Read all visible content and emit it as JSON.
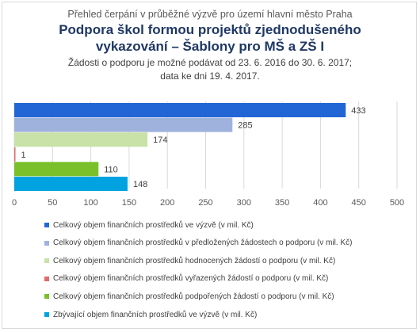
{
  "header": {
    "supertitle": "Přehled čerpání v průběžné výzvě pro území hlavní město Praha",
    "title_line1": "Podpora škol formou projektů zjednodušeného",
    "title_line2": "vykazování – Šablony pro MŠ a ZŠ I",
    "subtitle_line1": "Žádosti o podporu je možné podávat od 23. 6. 2016 do 30. 6. 2017;",
    "subtitle_line2": "data ke dni 19. 4. 2017."
  },
  "chart_data": {
    "type": "bar",
    "orientation": "horizontal",
    "xlim": [
      0,
      500
    ],
    "x_ticks": [
      0,
      50,
      100,
      150,
      200,
      250,
      300,
      350,
      400,
      450,
      500
    ],
    "grid": true,
    "legend_position": "bottom",
    "series": [
      {
        "name": "Celkový objem finančních prostředků ve výzvě (v mil. Kč)",
        "value": 433,
        "color": "#2266d6"
      },
      {
        "name": "Celkový objem finančních prostředků v předložených žádostech o podporu (v mil. Kč)",
        "value": 285,
        "color": "#9fb2dd"
      },
      {
        "name": "Celkový objem finančních prostředků hodnocených žádostí o podporu (v mil. Kč)",
        "value": 174,
        "color": "#c8e2a7"
      },
      {
        "name": "Celkový objem finančních prostředků vyřazených žádostí o podporu (v mil. Kč)",
        "value": 1,
        "color": "#e26a6a"
      },
      {
        "name": "Celkový objem finančních prostředků podpořených žádostí o podporu (v mil. Kč)",
        "value": 110,
        "color": "#79c02b"
      },
      {
        "name": "Zbývající objem finančních prostředků ve výzvě (v mil. Kč)",
        "value": 148,
        "color": "#00a3e0"
      }
    ]
  }
}
